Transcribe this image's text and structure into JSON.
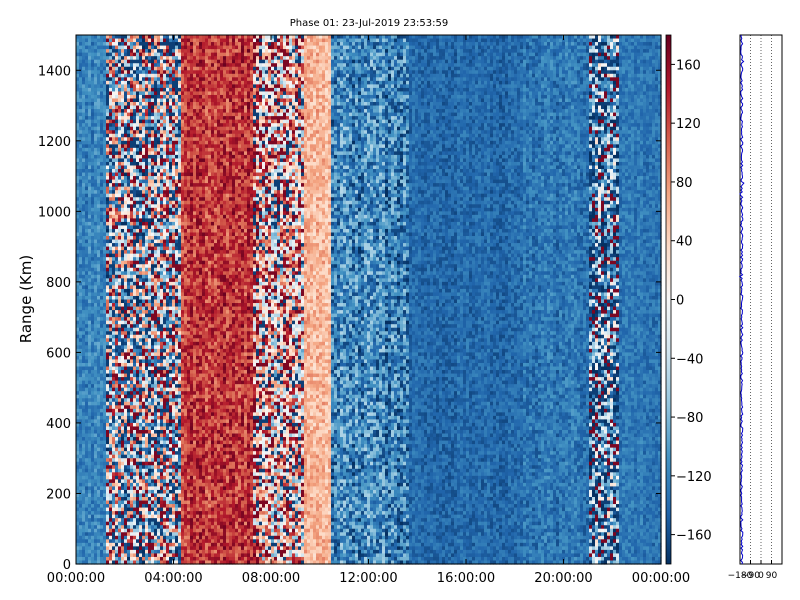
{
  "chart_data": {
    "type": "heatmap",
    "title": "Phase 01: 23-Jul-2019 23:53:59",
    "xlabel": "",
    "ylabel": "Range (Km)",
    "x_ticks": [
      "00:00:00",
      "04:00:00",
      "08:00:00",
      "12:00:00",
      "16:00:00",
      "20:00:00",
      "00:00:00"
    ],
    "x_range_hours": [
      0,
      24
    ],
    "y_ticks": [
      0,
      200,
      400,
      600,
      800,
      1000,
      1200,
      1400
    ],
    "ylim": [
      0,
      1500
    ],
    "colormap": "RdBu_r",
    "colorbar": {
      "ticks": [
        160,
        120,
        80,
        40,
        0,
        -40,
        -80,
        -120,
        -160
      ],
      "range": [
        -180,
        180
      ],
      "color_stops": [
        "#053061",
        "#2166ac",
        "#4393c3",
        "#92c5de",
        "#d1e5f0",
        "#f7f7f7",
        "#fddbc7",
        "#f4a582",
        "#d6604d",
        "#b2182b",
        "#67001f"
      ]
    },
    "time_profile": [
      {
        "start_h": 0.0,
        "end_h": 1.2,
        "mean_phase": -120,
        "spread": 25
      },
      {
        "start_h": 1.2,
        "end_h": 4.3,
        "mean_phase": -20,
        "spread": 160
      },
      {
        "start_h": 4.3,
        "end_h": 7.3,
        "mean_phase": 130,
        "spread": 40
      },
      {
        "start_h": 7.3,
        "end_h": 9.3,
        "mean_phase": 40,
        "spread": 120
      },
      {
        "start_h": 9.3,
        "end_h": 10.5,
        "mean_phase": 60,
        "spread": 30
      },
      {
        "start_h": 10.5,
        "end_h": 13.7,
        "mean_phase": -120,
        "spread": 55
      },
      {
        "start_h": 13.7,
        "end_h": 18.3,
        "mean_phase": -140,
        "spread": 20
      },
      {
        "start_h": 18.3,
        "end_h": 21.0,
        "mean_phase": -130,
        "spread": 25
      },
      {
        "start_h": 21.0,
        "end_h": 22.3,
        "mean_phase": -100,
        "spread": 120
      },
      {
        "start_h": 22.3,
        "end_h": 24.0,
        "mean_phase": -130,
        "spread": 20
      }
    ],
    "side_panel": {
      "x_ticks": [
        "−180",
        "−90",
        "0",
        "90"
      ],
      "x_tick_values": [
        -180,
        -90,
        0,
        90
      ],
      "xlim": [
        -180,
        180
      ],
      "ylim": [
        0,
        1500
      ],
      "line_color": "#0000cc",
      "mean_value": -165
    }
  }
}
